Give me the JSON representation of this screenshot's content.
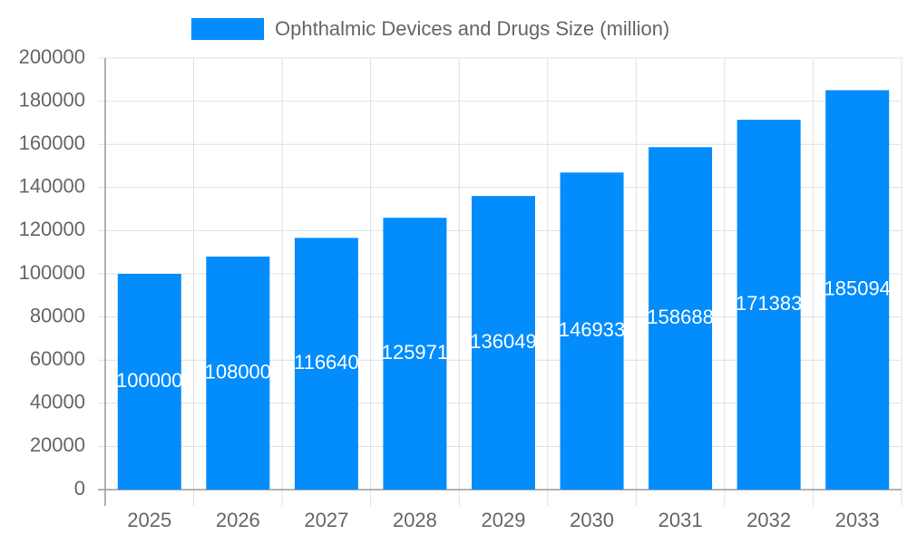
{
  "chart_data": {
    "type": "bar",
    "categories": [
      "2025",
      "2026",
      "2027",
      "2028",
      "2029",
      "2030",
      "2031",
      "2032",
      "2033"
    ],
    "series": [
      {
        "name": "Ophthalmic Devices and Drugs Size (million)",
        "color": "#038cfc",
        "values": [
          100000,
          108000,
          116640,
          125971,
          136049,
          146933,
          158688,
          171383,
          185094
        ]
      }
    ],
    "ylim": [
      0,
      200000
    ],
    "yticks": [
      0,
      20000,
      40000,
      60000,
      80000,
      100000,
      120000,
      140000,
      160000,
      180000,
      200000
    ],
    "grid": true,
    "legend": "top"
  }
}
